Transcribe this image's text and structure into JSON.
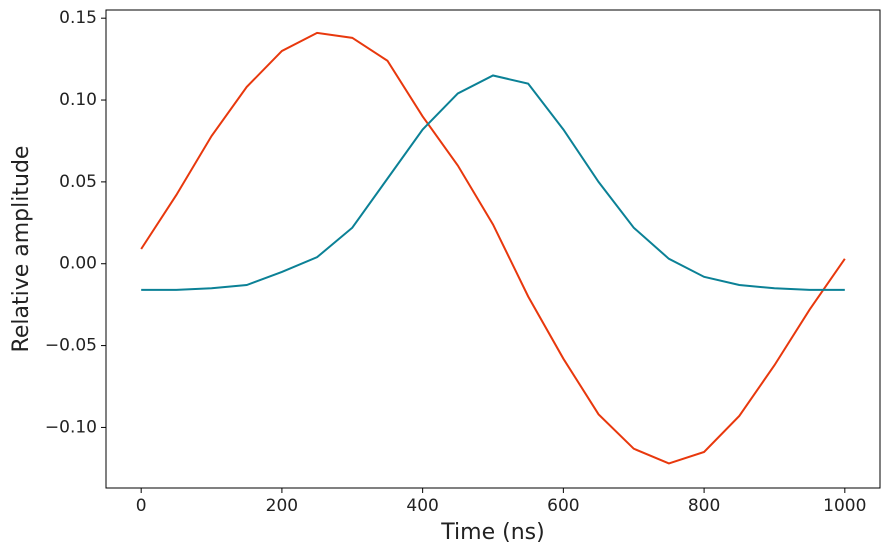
{
  "chart_data": {
    "type": "line",
    "xlabel": "Time (ns)",
    "ylabel": "Relative amplitude",
    "x": [
      0,
      50,
      100,
      150,
      200,
      250,
      300,
      350,
      400,
      450,
      500,
      550,
      600,
      650,
      700,
      750,
      800,
      850,
      900,
      950,
      1000
    ],
    "series": [
      {
        "color": "#e8380d",
        "values": [
          0.009,
          0.042,
          0.078,
          0.108,
          0.13,
          0.141,
          0.138,
          0.124,
          0.09,
          0.06,
          0.024,
          -0.02,
          -0.058,
          -0.092,
          -0.113,
          -0.122,
          -0.115,
          -0.093,
          -0.062,
          -0.028,
          0.003
        ]
      },
      {
        "color": "#0b8196",
        "values": [
          -0.016,
          -0.016,
          -0.015,
          -0.013,
          -0.005,
          0.004,
          0.022,
          0.052,
          0.082,
          0.104,
          0.115,
          0.11,
          0.082,
          0.05,
          0.022,
          0.003,
          -0.008,
          -0.013,
          -0.015,
          -0.016,
          -0.016
        ]
      }
    ],
    "xlim": [
      -50,
      1050
    ],
    "ylim": [
      -0.137,
      0.155
    ],
    "xticks": [
      0,
      200,
      400,
      600,
      800,
      1000
    ],
    "yticks": [
      {
        "value": -0.1,
        "label": "−0.10"
      },
      {
        "value": -0.05,
        "label": "−0.05"
      },
      {
        "value": 0,
        "label": "0.00"
      },
      {
        "value": 0.05,
        "label": "0.05"
      },
      {
        "value": 0.1,
        "label": "0.10"
      },
      {
        "value": 0.15,
        "label": "0.15"
      }
    ]
  }
}
